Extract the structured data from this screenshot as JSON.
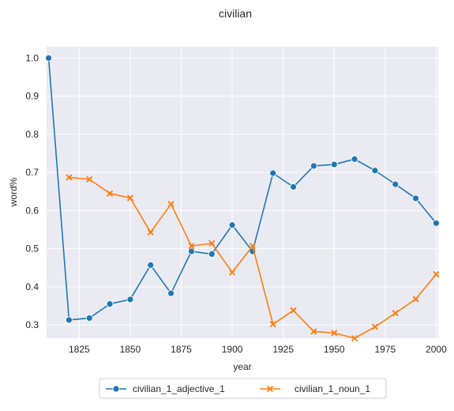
{
  "chart_data": {
    "type": "line",
    "title": "civilian",
    "xlabel": "year",
    "ylabel": "word%",
    "xlim": [
      1809,
      2001
    ],
    "ylim": [
      0.265,
      1.03
    ],
    "xticks": [
      1825,
      1850,
      1875,
      1900,
      1925,
      1950,
      1975,
      2000
    ],
    "yticks": [
      0.3,
      0.4,
      0.5,
      0.6,
      0.7,
      0.8,
      0.9,
      1.0
    ],
    "grid": true,
    "legend_position": "bottom-center",
    "series": [
      {
        "name": "civilian_1_adjective_1",
        "color": "#1f77b4",
        "marker": "circle",
        "x": [
          1810,
          1820,
          1830,
          1840,
          1850,
          1860,
          1870,
          1880,
          1890,
          1900,
          1910,
          1920,
          1930,
          1940,
          1950,
          1960,
          1970,
          1980,
          1990,
          2000
        ],
        "y": [
          1.0,
          0.313,
          0.318,
          0.355,
          0.367,
          0.457,
          0.383,
          0.493,
          0.486,
          0.562,
          0.493,
          0.698,
          0.662,
          0.717,
          0.721,
          0.735,
          0.705,
          0.669,
          0.632,
          0.567
        ]
      },
      {
        "name": "civilian_1_noun_1",
        "color": "#ff7f0e",
        "marker": "x",
        "x": [
          1820,
          1830,
          1840,
          1850,
          1860,
          1870,
          1880,
          1890,
          1900,
          1910,
          1920,
          1930,
          1940,
          1950,
          1960,
          1970,
          1980,
          1990,
          2000
        ],
        "y": [
          0.687,
          0.682,
          0.645,
          0.633,
          0.543,
          0.617,
          0.507,
          0.514,
          0.438,
          0.507,
          0.302,
          0.338,
          0.283,
          0.279,
          0.265,
          0.295,
          0.331,
          0.368,
          0.433
        ]
      }
    ]
  }
}
